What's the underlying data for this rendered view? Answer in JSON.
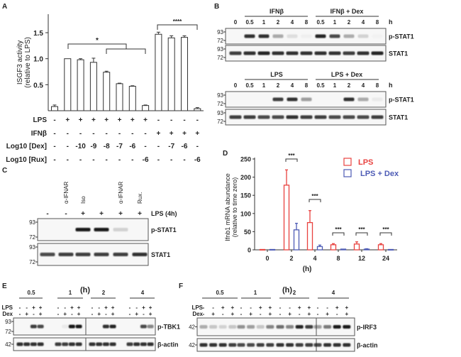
{
  "panel_labels": {
    "A": "A",
    "B": "B",
    "C": "C",
    "D": "D",
    "E": "E",
    "F": "F"
  },
  "chart_data": [
    {
      "type": "bar",
      "panel": "A",
      "ylabel": [
        "ISGF3 activity",
        "(relative to LPS)"
      ],
      "ylim": [
        0,
        1.8
      ],
      "yticks": [
        "0.5",
        "1.0",
        "1.5"
      ],
      "ytick_values": [
        0.5,
        1.0,
        1.5
      ],
      "values": [
        0.08,
        1.0,
        0.98,
        0.93,
        0.74,
        0.52,
        0.47,
        0.1,
        1.47,
        1.4,
        1.41,
        0.04
      ],
      "errors": [
        0.03,
        0.0,
        0.02,
        0.08,
        0.02,
        0.01,
        0.01,
        0.01,
        0.04,
        0.04,
        0.03,
        0.02
      ],
      "bar_color": "#ffffff",
      "significance": [
        "*",
        "****"
      ],
      "conditions": [
        {
          "label": "LPS",
          "values": [
            "-",
            "+",
            "+",
            "+",
            "+",
            "+",
            "+",
            "+",
            "-",
            "-",
            "-",
            "-"
          ]
        },
        {
          "label": "IFNβ",
          "values": [
            "-",
            "-",
            "-",
            "-",
            "-",
            "-",
            "-",
            "-",
            "+",
            "+",
            "+",
            "+"
          ]
        },
        {
          "label": "Log10 [Dex]",
          "values": [
            "-",
            "-",
            "-10",
            "-9",
            "-8",
            "-7",
            "-6",
            "-",
            "-",
            "-7",
            "-6",
            "-"
          ]
        },
        {
          "label": "Log10 [Rux]",
          "values": [
            "-",
            "-",
            "-",
            "-",
            "-",
            "-",
            "-",
            "-6",
            "-",
            "-",
            "-",
            "-6"
          ]
        }
      ]
    },
    {
      "type": "bar",
      "panel": "D",
      "ylabel": [
        "Ifnb1 mRNA abundance",
        "(relative to time zero)"
      ],
      "ylabel_italic_part": "Ifnb1",
      "xlabel": "(h)",
      "categories": [
        "0",
        "2",
        "4",
        "8",
        "12",
        "24"
      ],
      "ylim": [
        0,
        250
      ],
      "yticks": [
        "0",
        "50",
        "100",
        "150",
        "200",
        "250"
      ],
      "ytick_values": [
        0,
        50,
        100,
        150,
        200,
        250
      ],
      "legend_position": "top-right",
      "series": [
        {
          "name": "LPS",
          "color": "#e8423f",
          "values": [
            1,
            178,
            75,
            14,
            16,
            14
          ],
          "errors": [
            0,
            42,
            33,
            3,
            6,
            3
          ]
        },
        {
          "name": "LPS + Dex",
          "color": "#4d5bb5",
          "values": [
            1,
            55,
            9,
            2,
            2,
            1
          ],
          "errors": [
            0,
            18,
            4,
            0,
            1,
            0
          ]
        }
      ],
      "significance": [
        "",
        "***",
        "***",
        "***",
        "***",
        "***"
      ]
    }
  ],
  "panel_b": {
    "top": {
      "groups": [
        "IFNβ",
        "IFNβ + Dex"
      ],
      "times": [
        "0",
        "0.5",
        "1",
        "2",
        "4",
        "8",
        "0.5",
        "1",
        "2",
        "4",
        "8"
      ],
      "unit": "h",
      "blots": [
        {
          "label": "p-STAT1",
          "markers": [
            "93",
            "72"
          ],
          "intensity": [
            0,
            0.85,
            0.85,
            0.35,
            0.1,
            0.03,
            0.9,
            0.75,
            0.3,
            0.15,
            0.02
          ]
        },
        {
          "label": "STAT1",
          "markers": [
            "93",
            "72"
          ],
          "intensity": [
            0.8,
            0.85,
            0.9,
            0.85,
            0.85,
            0.85,
            0.85,
            0.85,
            0.8,
            0.85,
            0.9
          ]
        }
      ]
    },
    "bottom": {
      "groups": [
        "LPS",
        "LPS + Dex"
      ],
      "times": [
        "0",
        "0.5",
        "1",
        "2",
        "4",
        "8",
        "0.5",
        "1",
        "2",
        "4",
        "8"
      ],
      "unit": "h",
      "blots": [
        {
          "label": "p-STAT1",
          "markers": [
            "93",
            "72"
          ],
          "intensity": [
            0,
            0,
            0,
            0.8,
            0.85,
            0.4,
            0,
            0,
            0.85,
            0.35,
            0.05
          ]
        },
        {
          "label": "STAT1",
          "markers": [
            "93",
            "72"
          ],
          "intensity": [
            0.8,
            0.8,
            0.75,
            0.75,
            0.85,
            0.8,
            0.8,
            0.75,
            0.75,
            0.75,
            0.8
          ]
        }
      ]
    }
  },
  "panel_c": {
    "columns": [
      "",
      "α-IFNAR",
      "Iso",
      "",
      "α-IFNAR",
      "Rux."
    ],
    "lps": [
      "-",
      "-",
      "+",
      "+",
      "+",
      "+"
    ],
    "lps_label": "LPS (4h)",
    "blots": [
      {
        "label": "p-STAT1",
        "markers": [
          "93",
          "72"
        ],
        "intensity": [
          0,
          0,
          0.95,
          0.95,
          0.15,
          0
        ]
      },
      {
        "label": "STAT1",
        "markers": [
          "93",
          "72"
        ],
        "intensity": [
          0.75,
          0.8,
          0.8,
          0.8,
          0.8,
          0.85
        ]
      }
    ]
  },
  "panel_e": {
    "unit": "(h)",
    "times": [
      "0.5",
      "1",
      "2",
      "4"
    ],
    "row_labels": [
      "LPS",
      "Dex"
    ],
    "lps": [
      "-",
      "-",
      "+",
      "+"
    ],
    "dex": [
      "-",
      "+",
      "-",
      "+"
    ],
    "blots": [
      {
        "label": "p-TBK1",
        "markers": [
          "93",
          "72"
        ],
        "intensity": [
          0,
          0,
          0.8,
          0.75,
          0,
          0.05,
          0.95,
          0.95,
          0,
          0,
          0.85,
          0.9,
          0,
          0,
          0.75,
          0.5
        ]
      },
      {
        "label": "β-actin",
        "markers": [
          "42"
        ],
        "intensity": [
          0.85,
          0.85,
          0.85,
          0.85,
          0.8,
          0.8,
          0.85,
          0.85,
          0.85,
          0.85,
          0.85,
          0.85,
          0.8,
          0.85,
          0.85,
          0.85
        ]
      }
    ]
  },
  "panel_f": {
    "unit": "(h)",
    "times": [
      "0.5",
      "1",
      "2",
      "4"
    ],
    "row_labels": [
      "LPS",
      "Dex"
    ],
    "lps": [
      "-",
      "-",
      "+",
      "+"
    ],
    "dex": [
      "-",
      "+",
      "-",
      "+"
    ],
    "blots": [
      {
        "label": "p-IRF3",
        "markers": [
          "42"
        ],
        "intensity": [
          0.3,
          0.2,
          0.15,
          0.2,
          0.45,
          0.4,
          0.2,
          0.5,
          0.6,
          0.5,
          0.9,
          0.8,
          0.4,
          0.55,
          0.95,
          0.95
        ]
      },
      {
        "label": "β-actin",
        "markers": [
          "42"
        ],
        "intensity": [
          0.85,
          0.85,
          0.85,
          0.8,
          0.75,
          0.75,
          0.8,
          0.8,
          0.85,
          0.85,
          0.8,
          0.8,
          0.75,
          0.85,
          0.85,
          0.85
        ]
      }
    ]
  }
}
